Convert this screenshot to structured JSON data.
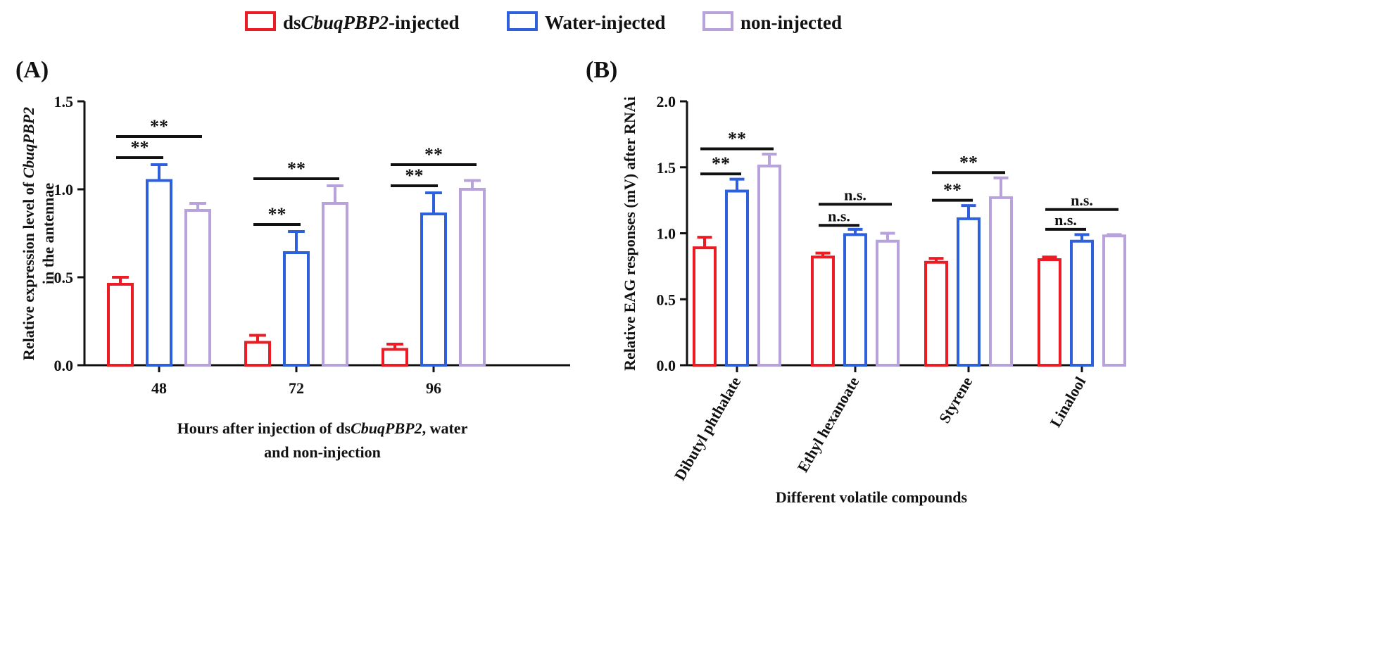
{
  "legend": {
    "items": [
      {
        "prefix": "ds",
        "italic": "CbuqPBP2",
        "suffix": "-injected",
        "color": "#ed1c24"
      },
      {
        "prefix": "",
        "italic": "Water-injected",
        "suffix": "",
        "color": "#2e5fdc",
        "plain": true
      },
      {
        "prefix": "",
        "italic": "non-injected",
        "suffix": "",
        "color": "#b8a2db",
        "plain": true
      }
    ]
  },
  "chart_data": [
    {
      "type": "bar",
      "panel_label": "(A)",
      "ylabel": {
        "plain1": "Relative expression level  of ",
        "italic": "CbuqPBP2",
        "plain2": "in the antennae"
      },
      "xlabel": {
        "line1_plain1": "Hours after injection of ds",
        "line1_italic": "CbuqPBP2",
        "line1_plain2": ", water",
        "line2": "and non-injection"
      },
      "categories": [
        "48",
        "72",
        "96"
      ],
      "ylim": [
        0,
        1.5
      ],
      "yticks": [
        0.0,
        0.5,
        1.0,
        1.5
      ],
      "ytick_labels": [
        "0.0",
        "0.5",
        "1.0",
        "1.5"
      ],
      "series": [
        {
          "name": "dsCbuqPBP2-injected",
          "values": [
            0.46,
            0.13,
            0.09
          ],
          "errors": [
            0.04,
            0.04,
            0.03
          ],
          "color": "#ed1c24"
        },
        {
          "name": "Water-injected",
          "values": [
            1.05,
            0.64,
            0.86
          ],
          "errors": [
            0.09,
            0.12,
            0.12
          ],
          "color": "#2e5fdc"
        },
        {
          "name": "non-injected",
          "values": [
            0.88,
            0.92,
            1.0
          ],
          "errors": [
            0.04,
            0.1,
            0.05
          ],
          "color": "#b8a2db"
        }
      ],
      "annotations": [
        {
          "category": 0,
          "from": 0,
          "to": 1,
          "level": 1.18,
          "label": "**"
        },
        {
          "category": 0,
          "from": 0,
          "to": 2,
          "level": 1.3,
          "label": "**"
        },
        {
          "category": 1,
          "from": 0,
          "to": 1,
          "level": 0.8,
          "label": "**"
        },
        {
          "category": 1,
          "from": 0,
          "to": 2,
          "level": 1.06,
          "label": "**"
        },
        {
          "category": 2,
          "from": 0,
          "to": 1,
          "level": 1.02,
          "label": "**"
        },
        {
          "category": 2,
          "from": 0,
          "to": 2,
          "level": 1.14,
          "label": "**"
        }
      ]
    },
    {
      "type": "bar",
      "panel_label": "(B)",
      "ylabel": {
        "text": "Relative EAG responses (mV) after RNAi"
      },
      "xlabel": {
        "text": "Different volatile compounds"
      },
      "categories": [
        "Dibutyl phthalate",
        "Ethyl hexanoate",
        "Styrene",
        "Linalool"
      ],
      "ylim": [
        0,
        2.0
      ],
      "yticks": [
        0.0,
        0.5,
        1.0,
        1.5,
        2.0
      ],
      "ytick_labels": [
        "0.0",
        "0.5",
        "1.0",
        "1.5",
        "2.0"
      ],
      "series": [
        {
          "name": "dsCbuqPBP2-injected",
          "values": [
            0.89,
            0.82,
            0.78,
            0.8
          ],
          "errors": [
            0.08,
            0.03,
            0.03,
            0.02
          ],
          "color": "#ed1c24"
        },
        {
          "name": "Water-injected",
          "values": [
            1.32,
            0.99,
            1.11,
            0.94
          ],
          "errors": [
            0.09,
            0.04,
            0.1,
            0.05
          ],
          "color": "#2e5fdc"
        },
        {
          "name": "non-injected",
          "values": [
            1.51,
            0.94,
            1.27,
            0.98
          ],
          "errors": [
            0.09,
            0.06,
            0.15,
            0.01
          ],
          "color": "#b8a2db"
        }
      ],
      "annotations": [
        {
          "category": 0,
          "from": 0,
          "to": 1,
          "level": 1.45,
          "label": "**"
        },
        {
          "category": 0,
          "from": 0,
          "to": 2,
          "level": 1.64,
          "label": "**"
        },
        {
          "category": 1,
          "from": 0,
          "to": 1,
          "level": 1.06,
          "label": "n.s."
        },
        {
          "category": 1,
          "from": 0,
          "to": 2,
          "level": 1.22,
          "label": "n.s."
        },
        {
          "category": 2,
          "from": 0,
          "to": 1,
          "level": 1.25,
          "label": "**"
        },
        {
          "category": 2,
          "from": 0,
          "to": 2,
          "level": 1.46,
          "label": "**"
        },
        {
          "category": 3,
          "from": 0,
          "to": 1,
          "level": 1.03,
          "label": "n.s."
        },
        {
          "category": 3,
          "from": 0,
          "to": 2,
          "level": 1.18,
          "label": "n.s."
        }
      ]
    }
  ]
}
